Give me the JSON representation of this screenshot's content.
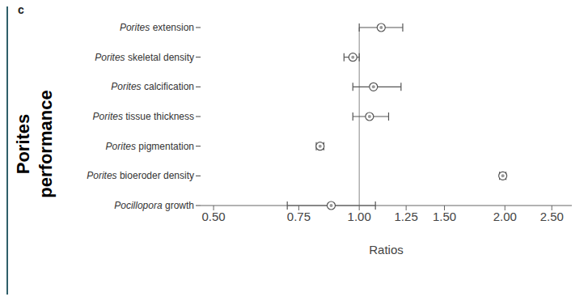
{
  "chart_data": {
    "type": "forest",
    "title": "c",
    "annotations": [
      "Porites performance"
    ],
    "x_label": "Ratios",
    "categories": [
      "Porites extension",
      "Porites skeletal density",
      "Porites calcification",
      "Porites tissue thickness",
      "Porites pigmentation",
      "Porites bioeroder density",
      "Pocillopora growth"
    ],
    "values": [
      1.11,
      0.97,
      1.07,
      1.05,
      0.83,
      1.98,
      0.875
    ],
    "lower": [
      1.0,
      0.93,
      0.97,
      0.97,
      0.815,
      1.95,
      0.71
    ],
    "upper": [
      1.23,
      1.0,
      1.22,
      1.15,
      0.845,
      2.01,
      1.08
    ],
    "xlim": [
      0.47,
      2.75
    ],
    "xticks": [
      {
        "value": 0.5,
        "label": "0.50"
      },
      {
        "value": 0.75,
        "label": "0.75"
      },
      {
        "value": 1.0,
        "label": "1.00"
      },
      {
        "value": 1.25,
        "label": "1.25"
      },
      {
        "value": 1.5,
        "label": "1.50"
      },
      {
        "value": 2.0,
        "label": "2.00"
      },
      {
        "value": 2.5,
        "label": "2.50"
      }
    ],
    "log": "x",
    "reference_x": 1.0,
    "color": "#555555",
    "marker": "circle",
    "grid": false
  }
}
